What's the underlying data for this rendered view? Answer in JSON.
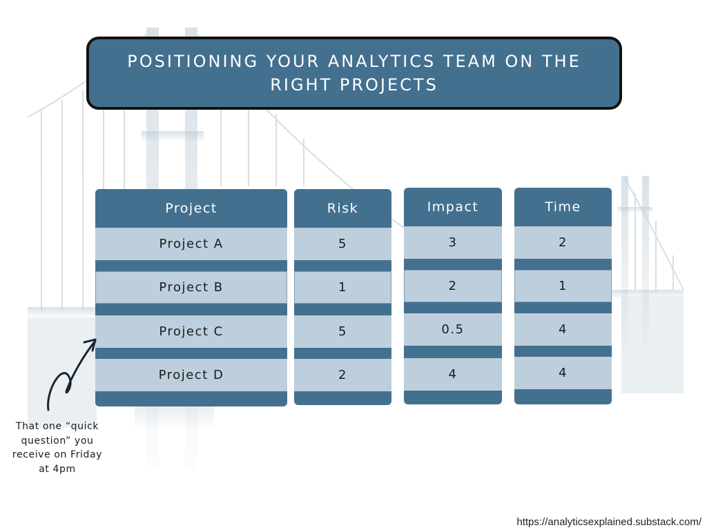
{
  "title": "POSITIONING YOUR ANALYTICS TEAM ON THE RIGHT PROJECTS",
  "table": {
    "columns": [
      {
        "header": "Project",
        "values": [
          "Project A",
          "Project B",
          "Project C",
          "Project D"
        ]
      },
      {
        "header": "Risk",
        "values": [
          "5",
          "1",
          "5",
          "2"
        ]
      },
      {
        "header": "Impact",
        "values": [
          "3",
          "2",
          "0.5",
          "4"
        ]
      },
      {
        "header": "Time",
        "values": [
          "2",
          "1",
          "4",
          "4"
        ]
      }
    ]
  },
  "annotation": "That one “quick question” you receive on Friday at 4pm",
  "url": "https://analyticsexplained.substack.com/",
  "colors": {
    "header_blue": "#44708f",
    "cell_light": "#bdcfdc"
  },
  "icons": [
    "bridge-background-illustration",
    "curly-arrow-icon"
  ]
}
